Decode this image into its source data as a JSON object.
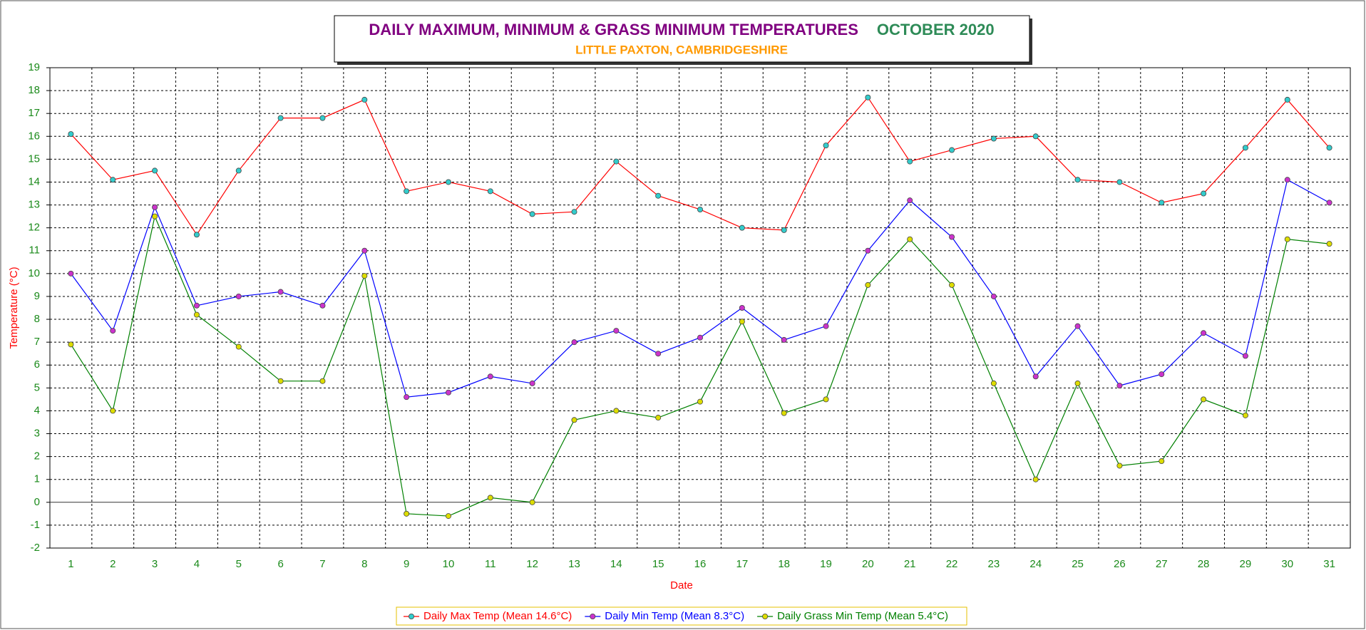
{
  "chart_data": {
    "type": "line",
    "title": "DAILY MAXIMUM, MINIMUM & GRASS MINIMUM TEMPERATURES",
    "title_date": "OCTOBER 2020",
    "subtitle": "LITTLE PAXTON, CAMBRIDGESHIRE",
    "x_label": "Date",
    "y_label": "Temperature (°C)",
    "categories": [
      "1",
      "2",
      "3",
      "4",
      "5",
      "6",
      "7",
      "8",
      "9",
      "10",
      "11",
      "12",
      "13",
      "14",
      "15",
      "16",
      "17",
      "18",
      "19",
      "20",
      "21",
      "22",
      "23",
      "24",
      "25",
      "26",
      "27",
      "28",
      "29",
      "30",
      "31"
    ],
    "ylim": [
      -2,
      19
    ],
    "yticks": [
      -2,
      -1,
      0,
      1,
      2,
      3,
      4,
      5,
      6,
      7,
      8,
      9,
      10,
      11,
      12,
      13,
      14,
      15,
      16,
      17,
      18,
      19
    ],
    "grid": true,
    "legend": "bottom",
    "series": [
      {
        "name": "Daily Max Temp (Mean 14.6°C)",
        "color": "#ff0000",
        "marker_color": "#33cccc",
        "values": [
          16.1,
          14.1,
          14.5,
          11.7,
          14.5,
          16.8,
          16.8,
          17.6,
          13.6,
          14.0,
          13.6,
          12.6,
          12.7,
          14.9,
          13.4,
          12.8,
          12.0,
          11.9,
          15.6,
          17.7,
          14.9,
          15.4,
          15.9,
          16.0,
          14.1,
          14.0,
          13.1,
          13.5,
          15.5,
          17.6,
          15.5
        ]
      },
      {
        "name": "Daily Min Temp (Mean 8.3°C)",
        "color": "#0000ff",
        "marker_color": "#cc33cc",
        "values": [
          10.0,
          7.5,
          12.9,
          8.6,
          9.0,
          9.2,
          8.6,
          11.0,
          4.6,
          4.8,
          5.5,
          5.2,
          7.0,
          7.5,
          6.5,
          7.2,
          8.5,
          7.1,
          7.7,
          11.0,
          13.2,
          11.6,
          9.0,
          5.5,
          7.7,
          5.1,
          5.6,
          7.4,
          6.4,
          14.1,
          13.1
        ]
      },
      {
        "name": "Daily Grass Min Temp (Mean 5.4°C)",
        "color": "#008000",
        "marker_color": "#dddd00",
        "values": [
          6.9,
          4.0,
          12.5,
          8.2,
          6.8,
          5.3,
          5.3,
          9.9,
          -0.5,
          -0.6,
          0.2,
          0.0,
          3.6,
          4.0,
          3.7,
          4.4,
          7.9,
          3.9,
          4.5,
          9.5,
          11.5,
          9.5,
          5.2,
          1.0,
          5.2,
          1.6,
          1.8,
          4.5,
          3.8,
          11.5,
          11.3
        ]
      }
    ]
  }
}
